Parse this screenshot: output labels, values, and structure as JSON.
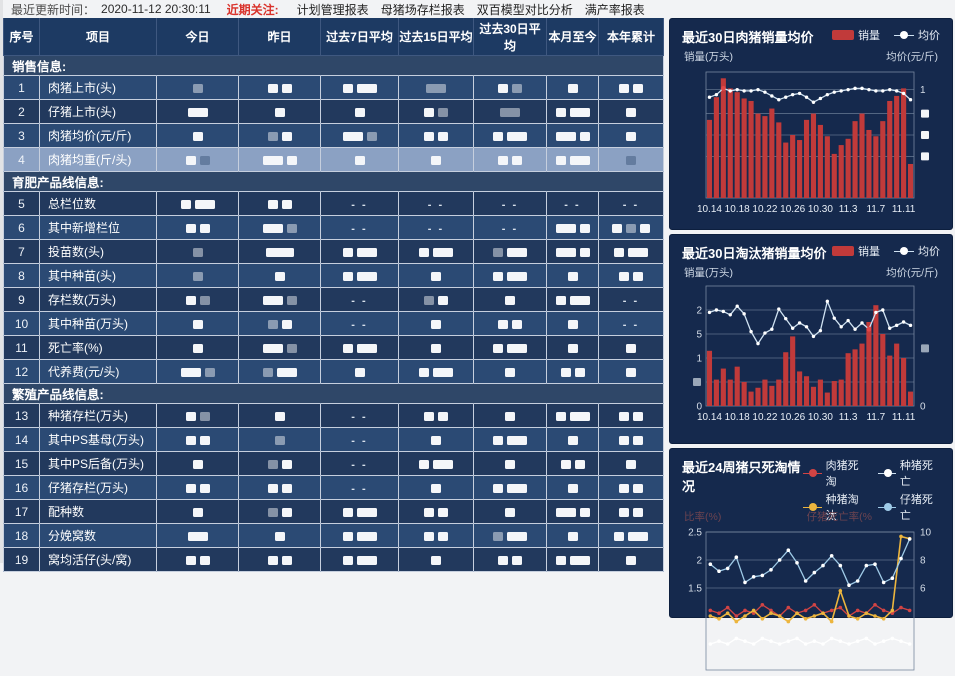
{
  "topbar": {
    "update_label": "最近更新时间：",
    "update_time": "2020-11-12 20:30:11",
    "focus_label": "近期关注:",
    "links": [
      "计划管理报表",
      "母猪场存栏报表",
      "双百模型对比分析",
      "满产率报表"
    ]
  },
  "table": {
    "headers": [
      "序号",
      "项目",
      "今日",
      "昨日",
      "过去7日平均",
      "过去15日平均",
      "过去30日平均",
      "本月至今",
      "本年累计"
    ],
    "rows": [
      {
        "type": "section",
        "label": "销售信息:"
      },
      {
        "type": "data",
        "num": "1",
        "label": "肉猪上市(头)",
        "shade": "a",
        "cells": [
          "g",
          "bb",
          "bB",
          "G",
          "bg",
          "b",
          "bb"
        ]
      },
      {
        "type": "data",
        "num": "2",
        "label": "仔猪上市(头)",
        "shade": "b",
        "cells": [
          "B",
          "b",
          "b",
          "bg",
          "G",
          "bB",
          "b"
        ]
      },
      {
        "type": "data",
        "num": "3",
        "label": "肉猪均价(元/斤)",
        "shade": "a",
        "cells": [
          "b",
          "gb",
          "Bg",
          "bb",
          "bB",
          "Bb",
          "b"
        ]
      },
      {
        "type": "data",
        "num": "4",
        "label": "肉猪均重(斤/头)",
        "highlight": true,
        "cells": [
          "bg",
          "Bb",
          "b",
          "b",
          "bb",
          "bB",
          "g"
        ]
      },
      {
        "type": "section",
        "label": "育肥产品线信息:"
      },
      {
        "type": "data",
        "num": "5",
        "label": "总栏位数",
        "shade": "b",
        "cells": [
          "bB",
          "bb",
          "d",
          "d",
          "d",
          "d",
          "d"
        ]
      },
      {
        "type": "data",
        "num": "6",
        "label": "其中新增栏位",
        "shade": "a",
        "cells": [
          "bb",
          "Bg",
          "d",
          "d",
          "d",
          "Bb",
          "bgb"
        ]
      },
      {
        "type": "data",
        "num": "7",
        "label": "投苗数(头)",
        "shade": "b",
        "cells": [
          "g",
          "W",
          "bB",
          "bB",
          "gB",
          "Bb",
          "bB"
        ]
      },
      {
        "type": "data",
        "num": "8",
        "label": "其中种苗(头)",
        "shade": "a",
        "cells": [
          "g",
          "b",
          "bB",
          "b",
          "bB",
          "b",
          "bb"
        ]
      },
      {
        "type": "data",
        "num": "9",
        "label": "存栏数(万头)",
        "shade": "b",
        "cells": [
          "bg",
          "Bg",
          "d",
          "gb",
          "b",
          "bB",
          "d"
        ]
      },
      {
        "type": "data",
        "num": "10",
        "label": "其中种苗(万头)",
        "shade": "a",
        "cells": [
          "b",
          "gb",
          "d",
          "b",
          "bb",
          "b",
          "d"
        ]
      },
      {
        "type": "data",
        "num": "11",
        "label": "死亡率(%)",
        "shade": "b",
        "cells": [
          "b",
          "Bg",
          "bB",
          "b",
          "bB",
          "b",
          "b"
        ]
      },
      {
        "type": "data",
        "num": "12",
        "label": "代养费(元/头)",
        "shade": "a",
        "cells": [
          "Bg",
          "gB",
          "b",
          "bB",
          "b",
          "bb",
          "b"
        ]
      },
      {
        "type": "section",
        "label": "繁殖产品线信息:"
      },
      {
        "type": "data",
        "num": "13",
        "label": "种猪存栏(万头)",
        "shade": "b",
        "cells": [
          "bg",
          "b",
          "d",
          "bb",
          "b",
          "bB",
          "bb"
        ]
      },
      {
        "type": "data",
        "num": "14",
        "label": "其中PS基母(万头)",
        "shade": "a",
        "cells": [
          "bb",
          "g",
          "d",
          "b",
          "bB",
          "b",
          "bb"
        ]
      },
      {
        "type": "data",
        "num": "15",
        "label": "其中PS后备(万头)",
        "shade": "b",
        "cells": [
          "b",
          "gb",
          "d",
          "bB",
          "b",
          "bb",
          "b"
        ]
      },
      {
        "type": "data",
        "num": "16",
        "label": "仔猪存栏(万头)",
        "shade": "a",
        "cells": [
          "bb",
          "bb",
          "d",
          "b",
          "bB",
          "b",
          "bb"
        ]
      },
      {
        "type": "data",
        "num": "17",
        "label": "配种数",
        "shade": "b",
        "cells": [
          "b",
          "gb",
          "bB",
          "bb",
          "b",
          "Bb",
          "bb"
        ]
      },
      {
        "type": "data",
        "num": "18",
        "label": "分娩窝数",
        "shade": "a",
        "cells": [
          "B",
          "b",
          "bB",
          "bb",
          "gB",
          "b",
          "bB"
        ]
      },
      {
        "type": "data",
        "num": "19",
        "label": "窝均活仔(头/窝)",
        "shade": "b",
        "cells": [
          "bb",
          "bb",
          "bB",
          "b",
          "bb",
          "bB",
          "b"
        ]
      }
    ]
  },
  "chart_data": [
    {
      "type": "bar+line",
      "title": "最近30日肉猪销量均价",
      "y_left_label": "销量(万头)",
      "y_right_label": "均价(元/斤)",
      "legend": [
        {
          "label": "销量",
          "type": "bar",
          "color": "#c13a3a"
        },
        {
          "label": "均价",
          "type": "line",
          "color": "#ffffff"
        }
      ],
      "x_labels": [
        "10.14",
        "10.18",
        "10.22",
        "10.26",
        "10.30",
        "11.3",
        "11.7",
        "11.11"
      ],
      "ymax": 1,
      "base": 132,
      "top": 6,
      "bars": [
        0.62,
        0.8,
        0.95,
        0.87,
        0.84,
        0.79,
        0.77,
        0.67,
        0.65,
        0.71,
        0.6,
        0.44,
        0.5,
        0.46,
        0.62,
        0.67,
        0.58,
        0.49,
        0.35,
        0.42,
        0.47,
        0.61,
        0.67,
        0.54,
        0.49,
        0.61,
        0.77,
        0.81,
        0.87,
        0.27
      ],
      "line": [
        0.8,
        0.82,
        0.87,
        0.85,
        0.86,
        0.85,
        0.85,
        0.86,
        0.84,
        0.81,
        0.78,
        0.8,
        0.82,
        0.83,
        0.8,
        0.76,
        0.79,
        0.82,
        0.84,
        0.85,
        0.86,
        0.87,
        0.87,
        0.86,
        0.85,
        0.85,
        0.86,
        0.85,
        0.83,
        0.78
      ],
      "marker_index": 2,
      "grid": [
        0.86,
        0.67,
        0.5,
        0.33
      ],
      "left_ticks": [],
      "right_ticks": [
        {
          "v": 0.86,
          "t": "1"
        },
        {
          "v": 0.67,
          "t": "■"
        },
        {
          "v": 0.5,
          "t": "■"
        },
        {
          "v": 0.33,
          "t": "■"
        }
      ]
    },
    {
      "type": "bar+line",
      "title": "最近30日淘汰猪销量均价",
      "y_left_label": "销量(万头)",
      "y_right_label": "均价(元/斤)",
      "legend": [
        {
          "label": "销量",
          "type": "bar",
          "color": "#c13a3a"
        },
        {
          "label": "均价",
          "type": "line",
          "color": "#ffffff"
        }
      ],
      "x_labels": [
        "10.14",
        "10.18",
        "10.22",
        "10.26",
        "10.30",
        "11.3",
        "11.7",
        "11.11"
      ],
      "ymax": 2.5,
      "base": 124,
      "top": 4,
      "bars": [
        1.15,
        0.55,
        0.78,
        0.55,
        0.82,
        0.5,
        0.3,
        0.38,
        0.55,
        0.42,
        0.55,
        1.12,
        1.45,
        0.72,
        0.62,
        0.4,
        0.55,
        0.28,
        0.52,
        0.55,
        1.1,
        1.18,
        1.3,
        1.75,
        2.1,
        1.5,
        1.05,
        1.3,
        1.0,
        0.3
      ],
      "line": [
        1.95,
        2.0,
        1.97,
        1.9,
        2.08,
        1.92,
        1.55,
        1.3,
        1.52,
        1.6,
        2.02,
        1.82,
        1.62,
        1.73,
        1.65,
        1.45,
        1.57,
        2.18,
        1.83,
        1.65,
        1.78,
        1.6,
        1.73,
        1.6,
        1.95,
        2.0,
        1.62,
        1.68,
        1.75,
        1.68
      ],
      "marker_index": 23,
      "grid": [
        2,
        1.5,
        1,
        0.5
      ],
      "left_ticks": [
        {
          "v": 2,
          "t": "2"
        },
        {
          "v": 1.5,
          "t": "5"
        },
        {
          "v": 1,
          "t": "1"
        },
        {
          "v": 0.5,
          "t": "▫"
        },
        {
          "v": 0,
          "t": "0"
        }
      ],
      "right_ticks": [
        {
          "v": 0,
          "t": "0"
        },
        {
          "v": 1.2,
          "t": "▫"
        }
      ]
    },
    {
      "type": "line",
      "title": "最近24周猪只死淘情况",
      "y_left_label": "比率(%)",
      "y_right_label": "仔猪死亡率(%",
      "grid": [
        2.5,
        2,
        1.5
      ],
      "left_ticks": [
        {
          "v": 2.5,
          "t": "2.5"
        },
        {
          "v": 2,
          "t": "2"
        },
        {
          "v": 1.5,
          "t": "1.5"
        }
      ],
      "right_ticks": [
        {
          "v": 2.5,
          "t": "10"
        },
        {
          "v": 2,
          "t": "8"
        },
        {
          "v": 1.5,
          "t": "6"
        }
      ],
      "series": [
        {
          "name": "肉猪死淘",
          "color": "#d24444",
          "axis": "left",
          "values": [
            1.1,
            1.05,
            1.15,
            1.0,
            1.1,
            1.05,
            1.2,
            1.1,
            1.0,
            1.15,
            1.05,
            1.1,
            1.2,
            1.05,
            1.1,
            1.15,
            1.0,
            1.1,
            1.05,
            1.2,
            1.1,
            1.05,
            1.15,
            1.1
          ]
        },
        {
          "name": "种猪死亡",
          "color": "#ffffff",
          "axis": "left",
          "values": [
            0.5,
            0.55,
            0.5,
            0.6,
            0.55,
            0.5,
            0.6,
            0.55,
            0.5,
            0.55,
            0.6,
            0.5,
            0.55,
            0.5,
            0.6,
            0.55,
            0.5,
            0.55,
            0.6,
            0.5,
            0.55,
            0.6,
            0.55,
            0.5
          ]
        },
        {
          "name": "种猪淘汰",
          "color": "#ecb53e",
          "axis": "left",
          "values": [
            1.0,
            0.95,
            1.05,
            0.9,
            1.0,
            1.1,
            0.95,
            1.05,
            1.0,
            0.9,
            1.05,
            0.95,
            1.0,
            1.05,
            0.9,
            1.45,
            1.0,
            0.95,
            1.05,
            1.0,
            0.95,
            1.1,
            2.42,
            2.38
          ]
        },
        {
          "name": "仔猪死亡",
          "color": "#9fcbe8",
          "axis": "right",
          "values": [
            7.7,
            7.2,
            7.4,
            8.2,
            6.4,
            6.8,
            6.9,
            7.3,
            8.0,
            8.7,
            7.8,
            6.5,
            7.1,
            7.6,
            8.3,
            7.6,
            6.2,
            6.5,
            7.6,
            7.7,
            6.4,
            6.7,
            8.1,
            9.5
          ]
        }
      ]
    }
  ],
  "colors": {
    "bar_red": "#c13a3a",
    "line_light": "#cfe2f2",
    "panel_bg": "#15294d",
    "header_bg": "#1d3a63",
    "row_medium": "#2b4a74",
    "row_dark": "#22395d",
    "row_highlight": "#8ba1c3",
    "focus_red": "#d9322b",
    "marker_red": "#e14747",
    "yellow_series": "#ecb53e"
  }
}
